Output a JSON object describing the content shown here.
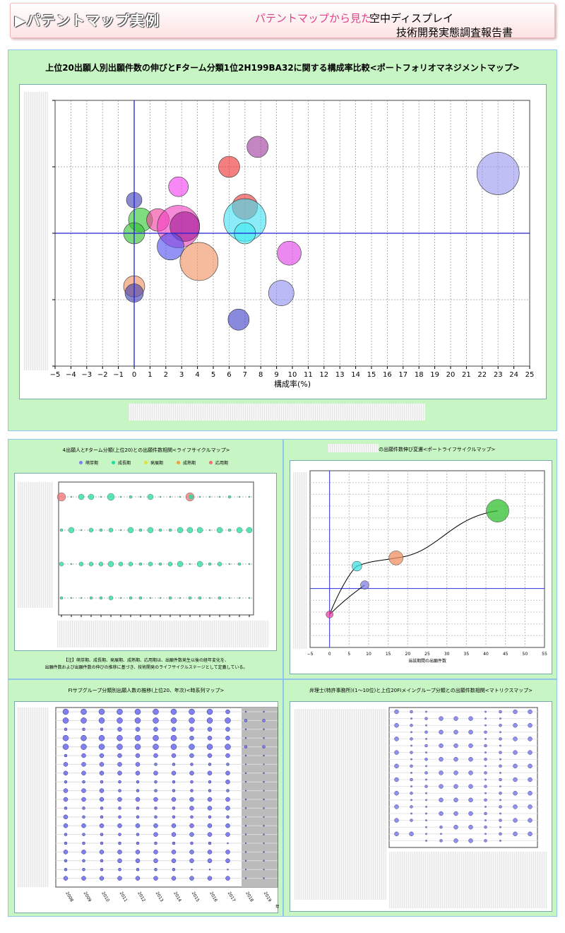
{
  "header": {
    "title": "▶パテントマップ実例",
    "subtitle_pink": "パテントマップから見た",
    "subtitle_topic": "空中ディスプレイ",
    "subtitle_report": "技術開発実態調査報告書"
  },
  "main_chart": {
    "title": "上位20出願人別出願件数の伸びとFターム分類1位2H199BA32に関する構成率比較<ポートフォリオマネジメントマップ>",
    "chart_data": {
      "type": "scatter",
      "title": "上位20出願人別出願件数の伸びとFターム分類1位2H199BA32に関する構成率比較<ポートフォリオマネジメントマップ>",
      "xlabel": "構成率(%)",
      "xlim": [
        -5,
        25
      ],
      "ylim": [
        -4,
        4
      ],
      "x_ticks": [
        -5,
        -4,
        -3,
        -2,
        -1,
        0,
        1,
        2,
        3,
        4,
        5,
        6,
        7,
        8,
        9,
        10,
        11,
        12,
        13,
        14,
        15,
        16,
        17,
        18,
        19,
        20,
        21,
        22,
        23,
        24,
        25
      ],
      "grid": true,
      "points": [
        {
          "x": 23.0,
          "y": 1.8,
          "r": 30,
          "color": "#9898f0"
        },
        {
          "x": 7.8,
          "y": 2.6,
          "r": 15,
          "color": "#a03c9c"
        },
        {
          "x": 6.0,
          "y": 2.0,
          "r": 15,
          "color": "#ee3030"
        },
        {
          "x": 2.8,
          "y": 1.4,
          "r": 14,
          "color": "#f040f0"
        },
        {
          "x": 0.0,
          "y": 1.0,
          "r": 11,
          "color": "#4040b8"
        },
        {
          "x": 7.0,
          "y": 0.8,
          "r": 18,
          "color": "#e83838"
        },
        {
          "x": 7.0,
          "y": 0.4,
          "r": 30,
          "color": "#40e0f0"
        },
        {
          "x": 7.0,
          "y": 0.0,
          "r": 15,
          "color": "#40e8f0"
        },
        {
          "x": 0.4,
          "y": 0.4,
          "r": 17,
          "color": "#30c830"
        },
        {
          "x": 1.5,
          "y": 0.4,
          "r": 16,
          "color": "#f040a0"
        },
        {
          "x": 2.8,
          "y": 0.2,
          "r": 30,
          "color": "#f040c0"
        },
        {
          "x": 3.2,
          "y": 0.2,
          "r": 21,
          "color": "#a01898"
        },
        {
          "x": 0.0,
          "y": 0.0,
          "r": 15,
          "color": "#30c030"
        },
        {
          "x": 2.3,
          "y": -0.4,
          "r": 19,
          "color": "#5050f0"
        },
        {
          "x": 4.1,
          "y": -0.85,
          "r": 27,
          "color": "#f09060"
        },
        {
          "x": 9.8,
          "y": -0.6,
          "r": 17,
          "color": "#e040e8"
        },
        {
          "x": 0.0,
          "y": -1.6,
          "r": 15,
          "color": "#f09060"
        },
        {
          "x": 0.0,
          "y": -1.8,
          "r": 13,
          "color": "#4040b0"
        },
        {
          "x": 9.3,
          "y": -1.8,
          "r": 18,
          "color": "#9090f0"
        },
        {
          "x": 6.6,
          "y": -2.6,
          "r": 15,
          "color": "#4040c8"
        }
      ]
    }
  },
  "lifecycle_map": {
    "title": "4出願人とFターム分類(上位20)との出願件数相関<ライフサイクルマップ>",
    "legend": [
      {
        "label": "萌芽期",
        "color": "#8080f0"
      },
      {
        "label": "成長期",
        "color": "#20e0a0"
      },
      {
        "label": "発展期",
        "color": "#e0e040"
      },
      {
        "label": "成熟期",
        "color": "#f0a040"
      },
      {
        "label": "応用期",
        "color": "#f07070"
      }
    ],
    "note1": "【注】萌芽期、成長期、発展期、成熟期、応用期は、出願件数発生以後の経年変化を、",
    "note2": "出願件数および出願件数の伸びの推移に基づき、技術開発のライフサイクルステージとして定義している。"
  },
  "portfolio_lifecycle": {
    "title": "の出願件数伸び変遷<ポートライフサイクルマップ>",
    "chart_data": {
      "type": "line",
      "xlabel": "当該期間の出願件数",
      "xlim": [
        -5,
        55
      ],
      "x_ticks": [
        -5,
        0,
        5,
        10,
        15,
        20,
        25,
        30,
        35,
        40,
        45,
        50,
        55
      ],
      "ylim": [
        -5,
        10
      ],
      "points": [
        {
          "x": 0,
          "y": -2.2,
          "r": 5,
          "color": "#f040a0"
        },
        {
          "x": 9,
          "y": 0.3,
          "r": 6,
          "color": "#8080e0"
        },
        {
          "x": 7,
          "y": 1.9,
          "r": 7,
          "color": "#40e0e0"
        },
        {
          "x": 17,
          "y": 2.6,
          "r": 10,
          "color": "#f09060"
        },
        {
          "x": 43,
          "y": 6.6,
          "r": 16,
          "color": "#30c030"
        }
      ]
    }
  },
  "timeseries_map": {
    "title": "FIサブグループ分類別出願人数の推移(上位20、年次)<時系列マップ>",
    "years": [
      "2008",
      "2009",
      "2010",
      "2011",
      "2012",
      "2013",
      "2014",
      "2015",
      "2016",
      "2017",
      "2018",
      "2019"
    ],
    "year_unit": "年"
  },
  "matrix_map": {
    "title": "弁理士(特許事務所)(1～10位)と上位20FIメイングループ分類との出願件数相関<マトリクスマップ>"
  }
}
